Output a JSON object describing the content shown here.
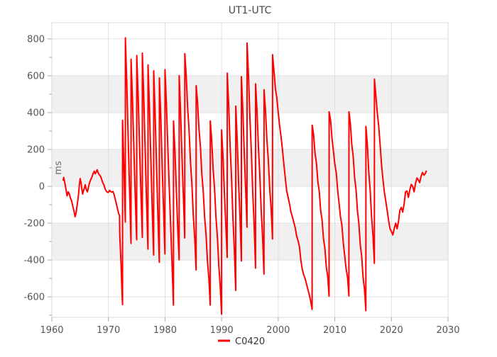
{
  "title": "UT1-UTC",
  "legend": {
    "items": [
      {
        "label": "C0420",
        "color": "#ff0000"
      }
    ]
  },
  "colors": {
    "line": "#ff0000",
    "band": "#f0f0f0",
    "grid": "#e0e0e0",
    "frame": "#d9d9d9",
    "tick": "#aaaaaa",
    "tick_label": "#555555",
    "title": "#464646",
    "background": "#ffffff"
  },
  "chart_data": {
    "type": "line",
    "title": "UT1-UTC",
    "xlabel": "",
    "ylabel": "ms",
    "xlim": [
      1960,
      2030
    ],
    "ylim": [
      -711,
      888
    ],
    "x_ticks": [
      1960,
      1970,
      1980,
      1990,
      2000,
      2010,
      2020,
      2030
    ],
    "y_ticks": [
      -600,
      -400,
      -200,
      0,
      200,
      400,
      600,
      800
    ],
    "y_minor_ticks": [
      -700,
      -500,
      -300,
      -100,
      100,
      300,
      500,
      700
    ],
    "bands": [
      [
        -400,
        -200
      ],
      [
        0,
        200
      ],
      [
        400,
        600
      ]
    ],
    "grid": true,
    "legend_position": "bottom",
    "series": [
      {
        "name": "C0420",
        "color": "#ff0000",
        "points": [
          [
            1962.0,
            30
          ],
          [
            1962.1,
            48
          ],
          [
            1962.3,
            18
          ],
          [
            1962.5,
            -15
          ],
          [
            1962.7,
            -52
          ],
          [
            1962.9,
            -30
          ],
          [
            1963.1,
            -42
          ],
          [
            1963.3,
            -65
          ],
          [
            1963.5,
            -80
          ],
          [
            1963.7,
            -108
          ],
          [
            1963.9,
            -132
          ],
          [
            1964.1,
            -165
          ],
          [
            1964.25,
            -150
          ],
          [
            1964.4,
            -118
          ],
          [
            1964.55,
            -85
          ],
          [
            1964.7,
            -48
          ],
          [
            1964.85,
            5
          ],
          [
            1965.0,
            42
          ],
          [
            1965.15,
            20
          ],
          [
            1965.3,
            -12
          ],
          [
            1965.45,
            -42
          ],
          [
            1965.6,
            -25
          ],
          [
            1965.75,
            -8
          ],
          [
            1965.9,
            8
          ],
          [
            1966.1,
            -18
          ],
          [
            1966.3,
            -30
          ],
          [
            1966.5,
            0
          ],
          [
            1966.7,
            22
          ],
          [
            1966.9,
            38
          ],
          [
            1967.1,
            52
          ],
          [
            1967.3,
            70
          ],
          [
            1967.5,
            82
          ],
          [
            1967.65,
            68
          ],
          [
            1967.8,
            75
          ],
          [
            1968.0,
            90
          ],
          [
            1968.2,
            72
          ],
          [
            1968.4,
            62
          ],
          [
            1968.6,
            55
          ],
          [
            1968.8,
            38
          ],
          [
            1969.0,
            20
          ],
          [
            1969.2,
            8
          ],
          [
            1969.4,
            -12
          ],
          [
            1969.6,
            -25
          ],
          [
            1969.8,
            -32
          ],
          [
            1970.0,
            -33
          ],
          [
            1970.2,
            -22
          ],
          [
            1970.4,
            -28
          ],
          [
            1970.6,
            -32
          ],
          [
            1970.8,
            -28
          ],
          [
            1971.0,
            -45
          ],
          [
            1971.2,
            -70
          ],
          [
            1971.4,
            -95
          ],
          [
            1971.6,
            -122
          ],
          [
            1971.8,
            -148
          ],
          [
            1971.95,
            -158
          ],
          [
            1972.0,
            -270
          ],
          [
            1972.15,
            -365
          ],
          [
            1972.3,
            -480
          ],
          [
            1972.42,
            -590
          ],
          [
            1972.49,
            -642
          ],
          [
            1972.5,
            358
          ],
          [
            1972.75,
            95
          ],
          [
            1972.99,
            -194
          ],
          [
            1973.0,
            806
          ],
          [
            1973.25,
            552
          ],
          [
            1973.5,
            248
          ],
          [
            1973.75,
            -35
          ],
          [
            1973.99,
            -310
          ],
          [
            1974.0,
            690
          ],
          [
            1974.25,
            470
          ],
          [
            1974.5,
            200
          ],
          [
            1974.75,
            -70
          ],
          [
            1974.99,
            -290
          ],
          [
            1975.0,
            710
          ],
          [
            1975.25,
            488
          ],
          [
            1975.5,
            216
          ],
          [
            1975.75,
            -52
          ],
          [
            1975.99,
            -277
          ],
          [
            1976.0,
            723
          ],
          [
            1976.25,
            482
          ],
          [
            1976.5,
            191
          ],
          [
            1976.75,
            -100
          ],
          [
            1976.99,
            -341
          ],
          [
            1977.0,
            659
          ],
          [
            1977.25,
            426
          ],
          [
            1977.5,
            143
          ],
          [
            1977.75,
            -140
          ],
          [
            1977.99,
            -373
          ],
          [
            1978.0,
            627
          ],
          [
            1978.25,
            392
          ],
          [
            1978.5,
            107
          ],
          [
            1978.75,
            -178
          ],
          [
            1978.99,
            -412
          ],
          [
            1979.0,
            588
          ],
          [
            1979.25,
            374
          ],
          [
            1979.5,
            110
          ],
          [
            1979.75,
            -129
          ],
          [
            1979.99,
            -367
          ],
          [
            1980.0,
            633
          ],
          [
            1980.25,
            445
          ],
          [
            1980.5,
            207
          ],
          [
            1980.75,
            -6
          ],
          [
            1981.0,
            -219
          ],
          [
            1981.25,
            -432
          ],
          [
            1981.49,
            -645
          ],
          [
            1981.5,
            355
          ],
          [
            1981.75,
            192
          ],
          [
            1982.0,
            -22
          ],
          [
            1982.25,
            -235
          ],
          [
            1982.49,
            -399
          ],
          [
            1982.5,
            601
          ],
          [
            1982.75,
            406
          ],
          [
            1983.0,
            161
          ],
          [
            1983.25,
            -59
          ],
          [
            1983.49,
            -280
          ],
          [
            1983.5,
            720
          ],
          [
            1983.75,
            598
          ],
          [
            1984.0,
            426
          ],
          [
            1984.25,
            304
          ],
          [
            1984.5,
            132
          ],
          [
            1984.75,
            10
          ],
          [
            1985.0,
            -162
          ],
          [
            1985.25,
            -284
          ],
          [
            1985.49,
            -454
          ],
          [
            1985.5,
            546
          ],
          [
            1985.75,
            452
          ],
          [
            1986.0,
            308
          ],
          [
            1986.25,
            214
          ],
          [
            1986.5,
            70
          ],
          [
            1986.75,
            -24
          ],
          [
            1987.0,
            -168
          ],
          [
            1987.25,
            -262
          ],
          [
            1987.5,
            -406
          ],
          [
            1987.75,
            -500
          ],
          [
            1987.99,
            -645
          ],
          [
            1988.0,
            355
          ],
          [
            1988.25,
            249
          ],
          [
            1988.5,
            93
          ],
          [
            1988.75,
            -13
          ],
          [
            1989.0,
            -169
          ],
          [
            1989.25,
            -275
          ],
          [
            1989.5,
            -431
          ],
          [
            1989.75,
            -537
          ],
          [
            1989.99,
            -694
          ],
          [
            1990.0,
            306
          ],
          [
            1990.25,
            158
          ],
          [
            1990.5,
            -40
          ],
          [
            1990.75,
            -213
          ],
          [
            1990.99,
            -386
          ],
          [
            1991.0,
            614
          ],
          [
            1991.25,
            442
          ],
          [
            1991.5,
            220
          ],
          [
            1991.75,
            48
          ],
          [
            1992.0,
            -174
          ],
          [
            1992.25,
            -346
          ],
          [
            1992.49,
            -565
          ],
          [
            1992.5,
            435
          ],
          [
            1992.75,
            250
          ],
          [
            1993.0,
            15
          ],
          [
            1993.25,
            -170
          ],
          [
            1993.49,
            -405
          ],
          [
            1993.5,
            595
          ],
          [
            1993.75,
            416
          ],
          [
            1994.0,
            187
          ],
          [
            1994.25,
            -17
          ],
          [
            1994.49,
            -222
          ],
          [
            1994.5,
            778
          ],
          [
            1994.75,
            599
          ],
          [
            1995.0,
            370
          ],
          [
            1995.25,
            191
          ],
          [
            1995.5,
            -38
          ],
          [
            1995.75,
            -217
          ],
          [
            1995.99,
            -444
          ],
          [
            1996.0,
            556
          ],
          [
            1996.25,
            409
          ],
          [
            1996.5,
            212
          ],
          [
            1996.75,
            65
          ],
          [
            1997.0,
            -132
          ],
          [
            1997.25,
            -279
          ],
          [
            1997.49,
            -476
          ],
          [
            1997.5,
            524
          ],
          [
            1997.75,
            414
          ],
          [
            1998.0,
            254
          ],
          [
            1998.25,
            144
          ],
          [
            1998.5,
            -16
          ],
          [
            1998.75,
            -126
          ],
          [
            1998.99,
            -286
          ],
          [
            1999.0,
            714
          ],
          [
            1999.25,
            625
          ],
          [
            1999.5,
            530
          ],
          [
            1999.75,
            480
          ],
          [
            2000.0,
            400
          ],
          [
            2000.25,
            330
          ],
          [
            2000.5,
            270
          ],
          [
            2000.75,
            200
          ],
          [
            2001.0,
            120
          ],
          [
            2001.25,
            45
          ],
          [
            2001.5,
            -25
          ],
          [
            2001.75,
            -60
          ],
          [
            2002.0,
            -95
          ],
          [
            2002.25,
            -140
          ],
          [
            2002.5,
            -165
          ],
          [
            2002.75,
            -195
          ],
          [
            2003.0,
            -225
          ],
          [
            2003.25,
            -270
          ],
          [
            2003.5,
            -295
          ],
          [
            2003.75,
            -330
          ],
          [
            2004.0,
            -400
          ],
          [
            2004.25,
            -450
          ],
          [
            2004.5,
            -480
          ],
          [
            2004.75,
            -500
          ],
          [
            2005.0,
            -530
          ],
          [
            2005.25,
            -560
          ],
          [
            2005.5,
            -590
          ],
          [
            2005.75,
            -625
          ],
          [
            2005.99,
            -668
          ],
          [
            2006.0,
            332
          ],
          [
            2006.25,
            280
          ],
          [
            2006.5,
            178
          ],
          [
            2006.75,
            126
          ],
          [
            2007.0,
            24
          ],
          [
            2007.25,
            -28
          ],
          [
            2007.5,
            -130
          ],
          [
            2007.75,
            -182
          ],
          [
            2008.0,
            -284
          ],
          [
            2008.25,
            -336
          ],
          [
            2008.5,
            -438
          ],
          [
            2008.75,
            -490
          ],
          [
            2008.99,
            -596
          ],
          [
            2009.0,
            404
          ],
          [
            2009.25,
            358
          ],
          [
            2009.5,
            262
          ],
          [
            2009.75,
            191
          ],
          [
            2010.0,
            120
          ],
          [
            2010.25,
            74
          ],
          [
            2010.5,
            -22
          ],
          [
            2010.75,
            -93
          ],
          [
            2011.0,
            -164
          ],
          [
            2011.25,
            -210
          ],
          [
            2011.5,
            -306
          ],
          [
            2011.75,
            -377
          ],
          [
            2012.0,
            -448
          ],
          [
            2012.25,
            -494
          ],
          [
            2012.49,
            -595
          ],
          [
            2012.5,
            405
          ],
          [
            2012.75,
            340
          ],
          [
            2013.0,
            225
          ],
          [
            2013.25,
            160
          ],
          [
            2013.5,
            45
          ],
          [
            2013.75,
            -20
          ],
          [
            2014.0,
            -135
          ],
          [
            2014.25,
            -200
          ],
          [
            2014.5,
            -315
          ],
          [
            2014.75,
            -380
          ],
          [
            2015.0,
            -495
          ],
          [
            2015.25,
            -560
          ],
          [
            2015.49,
            -675
          ],
          [
            2015.5,
            325
          ],
          [
            2015.75,
            226
          ],
          [
            2016.0,
            77
          ],
          [
            2016.25,
            -22
          ],
          [
            2016.5,
            -171
          ],
          [
            2016.75,
            -270
          ],
          [
            2016.99,
            -418
          ],
          [
            2017.0,
            582
          ],
          [
            2017.25,
            490
          ],
          [
            2017.5,
            400
          ],
          [
            2017.75,
            330
          ],
          [
            2018.0,
            230
          ],
          [
            2018.25,
            120
          ],
          [
            2018.5,
            40
          ],
          [
            2018.75,
            -30
          ],
          [
            2019.0,
            -80
          ],
          [
            2019.25,
            -130
          ],
          [
            2019.5,
            -185
          ],
          [
            2019.75,
            -230
          ],
          [
            2020.0,
            -245
          ],
          [
            2020.25,
            -264
          ],
          [
            2020.5,
            -230
          ],
          [
            2020.75,
            -200
          ],
          [
            2021.0,
            -230
          ],
          [
            2021.25,
            -190
          ],
          [
            2021.5,
            -130
          ],
          [
            2021.75,
            -115
          ],
          [
            2022.0,
            -140
          ],
          [
            2022.25,
            -95
          ],
          [
            2022.5,
            -30
          ],
          [
            2022.75,
            -25
          ],
          [
            2023.0,
            -60
          ],
          [
            2023.25,
            -20
          ],
          [
            2023.5,
            10
          ],
          [
            2023.75,
            0
          ],
          [
            2024.0,
            -30
          ],
          [
            2024.25,
            15
          ],
          [
            2024.5,
            45
          ],
          [
            2024.75,
            35
          ],
          [
            2025.0,
            20
          ],
          [
            2025.25,
            55
          ],
          [
            2025.5,
            75
          ],
          [
            2025.75,
            60
          ],
          [
            2026.0,
            70
          ],
          [
            2026.2,
            85
          ]
        ]
      }
    ]
  }
}
